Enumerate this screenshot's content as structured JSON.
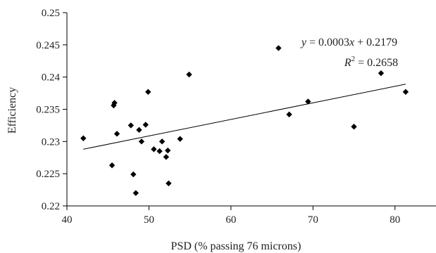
{
  "chart_data": {
    "type": "scatter",
    "xlabel": "PSD (% passing 76 microns)",
    "ylabel": "Efficiency",
    "xlim": [
      40,
      85
    ],
    "ylim": [
      0.22,
      0.25
    ],
    "xticks": [
      40,
      50,
      60,
      70,
      80
    ],
    "xtick_labels": [
      "40",
      "50",
      "60",
      "70",
      "80"
    ],
    "yticks": [
      0.22,
      0.225,
      0.23,
      0.235,
      0.24,
      0.245,
      0.25
    ],
    "ytick_labels": [
      "0.22",
      "0.225",
      "0.23",
      "0.235",
      "0.24",
      "0.245",
      "0.25"
    ],
    "grid": false,
    "marker": "diamond",
    "marker_color": "#000000",
    "points": [
      {
        "x": 42.0,
        "y": 0.2305
      },
      {
        "x": 45.5,
        "y": 0.2263
      },
      {
        "x": 45.7,
        "y": 0.2356
      },
      {
        "x": 45.8,
        "y": 0.236
      },
      {
        "x": 46.1,
        "y": 0.2312
      },
      {
        "x": 47.8,
        "y": 0.2325
      },
      {
        "x": 48.1,
        "y": 0.2249
      },
      {
        "x": 48.4,
        "y": 0.222
      },
      {
        "x": 48.8,
        "y": 0.2318
      },
      {
        "x": 49.1,
        "y": 0.23
      },
      {
        "x": 49.6,
        "y": 0.2326
      },
      {
        "x": 49.9,
        "y": 0.2377
      },
      {
        "x": 50.6,
        "y": 0.2288
      },
      {
        "x": 51.3,
        "y": 0.2285
      },
      {
        "x": 51.6,
        "y": 0.23
      },
      {
        "x": 52.1,
        "y": 0.2276
      },
      {
        "x": 52.3,
        "y": 0.2286
      },
      {
        "x": 52.4,
        "y": 0.2235
      },
      {
        "x": 53.8,
        "y": 0.2304
      },
      {
        "x": 54.9,
        "y": 0.2404
      },
      {
        "x": 65.8,
        "y": 0.2445
      },
      {
        "x": 67.1,
        "y": 0.2342
      },
      {
        "x": 69.4,
        "y": 0.2362
      },
      {
        "x": 75.0,
        "y": 0.2323
      },
      {
        "x": 78.3,
        "y": 0.2406
      },
      {
        "x": 81.3,
        "y": 0.2377
      }
    ],
    "trendline": {
      "type": "linear",
      "x_range": [
        42.0,
        81.3
      ],
      "y_range": [
        0.2288,
        0.2389
      ],
      "equation": "y = 0.0003x + 0.2179",
      "r_squared": "R² = 0.2658"
    }
  }
}
